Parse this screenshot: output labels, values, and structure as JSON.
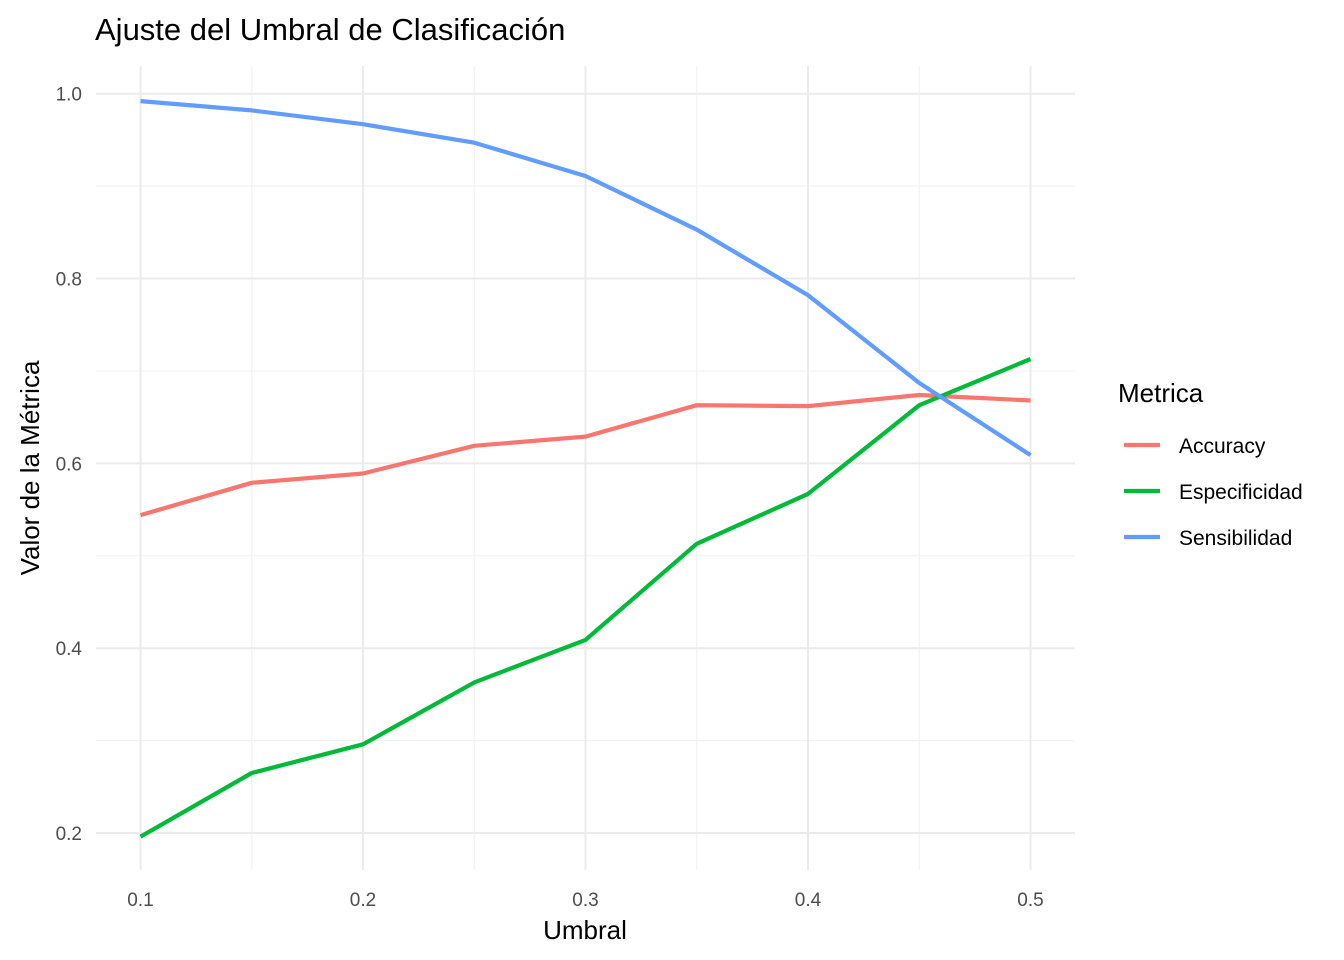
{
  "chart_data": {
    "type": "line",
    "title": "Ajuste del Umbral de Clasificación",
    "xlabel": "Umbral",
    "ylabel": "Valor de la Métrica",
    "x": [
      0.1,
      0.15,
      0.2,
      0.25,
      0.3,
      0.35,
      0.4,
      0.45,
      0.5
    ],
    "xlim": [
      0.08,
      0.52
    ],
    "ylim": [
      0.16,
      1.03
    ],
    "x_ticks": [
      "0.1",
      "0.2",
      "0.3",
      "0.4",
      "0.5"
    ],
    "y_ticks": [
      "0.2",
      "0.4",
      "0.6",
      "0.8",
      "1.0"
    ],
    "grid": true,
    "legend": {
      "title": "Metrica",
      "placement": "right"
    },
    "series": [
      {
        "name": "Accuracy",
        "color": "#F8766D",
        "values": [
          0.544,
          0.579,
          0.589,
          0.619,
          0.629,
          0.663,
          0.662,
          0.674,
          0.668
        ]
      },
      {
        "name": "Especificidad",
        "color": "#00BA38",
        "values": [
          0.196,
          0.265,
          0.296,
          0.363,
          0.409,
          0.513,
          0.567,
          0.663,
          0.713
        ]
      },
      {
        "name": "Sensibilidad",
        "color": "#619CFF",
        "values": [
          0.992,
          0.982,
          0.967,
          0.947,
          0.911,
          0.853,
          0.782,
          0.687,
          0.609
        ]
      }
    ]
  }
}
